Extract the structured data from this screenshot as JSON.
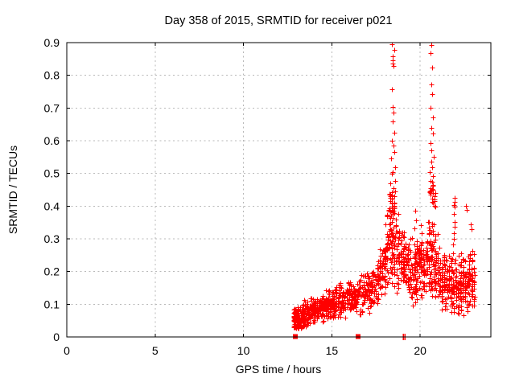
{
  "chart_data": {
    "type": "scatter",
    "title": "Day 358 of 2015, SRMTID for receiver p021",
    "xlabel": "GPS time / hours",
    "ylabel": "SRMTID / TECUs",
    "xlim": [
      0,
      24
    ],
    "ylim": [
      0,
      0.9
    ],
    "xticks": [
      0,
      5,
      10,
      15,
      20
    ],
    "xticklabels": [
      "0",
      "5",
      "10",
      "15",
      "20"
    ],
    "yticks": [
      0,
      0.1,
      0.2,
      0.3,
      0.4,
      0.5,
      0.6,
      0.7,
      0.8,
      0.9
    ],
    "yticklabels": [
      "0",
      "0.1",
      "0.2",
      "0.3",
      "0.4",
      "0.5",
      "0.6",
      "0.7",
      "0.8",
      "0.9"
    ],
    "grid": true,
    "grid_color": "#b8b8b8",
    "legend": "none",
    "marker": "plus",
    "marker_color": "#ff0000",
    "frame_color": "#000000",
    "seed": 20151358,
    "segments": [
      {
        "x0": 12.82,
        "x1": 13.35,
        "n": 100,
        "y0": 0.052,
        "y1": 0.06,
        "w": 0.042,
        "lo": 0.025,
        "hi": 0.13,
        "cols": false
      },
      {
        "x0": 13.35,
        "x1": 14.3,
        "n": 140,
        "y0": 0.065,
        "y1": 0.085,
        "w": 0.05,
        "lo": 0.03,
        "hi": 0.16,
        "cols": false
      },
      {
        "x0": 14.3,
        "x1": 15.3,
        "n": 140,
        "y0": 0.088,
        "y1": 0.105,
        "w": 0.055,
        "lo": 0.04,
        "hi": 0.19,
        "cols": false
      },
      {
        "x0": 15.3,
        "x1": 16.45,
        "n": 140,
        "y0": 0.105,
        "y1": 0.122,
        "w": 0.06,
        "lo": 0.05,
        "hi": 0.215,
        "cols": false
      },
      {
        "x0": 16.45,
        "x1": 17.5,
        "n": 115,
        "y0": 0.122,
        "y1": 0.15,
        "w": 0.07,
        "lo": 0.055,
        "hi": 0.25,
        "cols": false
      },
      {
        "x0": 17.5,
        "x1": 18.05,
        "n": 75,
        "y0": 0.16,
        "y1": 0.23,
        "w": 0.1,
        "lo": 0.07,
        "hi": 0.4,
        "cols": true
      },
      {
        "x0": 18.05,
        "x1": 18.75,
        "n": 115,
        "y0": 0.29,
        "y1": 0.27,
        "w": 0.16,
        "lo": 0.1,
        "hi": 0.52,
        "cols": true
      },
      {
        "x0": 18.25,
        "x1": 18.55,
        "n": 22,
        "y0": 0.4,
        "y1": 0.4,
        "w": 0.05,
        "lo": 0.33,
        "hi": 0.475,
        "cols": true
      },
      {
        "x0": 18.75,
        "x1": 19.6,
        "n": 120,
        "y0": 0.25,
        "y1": 0.2,
        "w": 0.11,
        "lo": 0.08,
        "hi": 0.4,
        "cols": true
      },
      {
        "x0": 19.6,
        "x1": 20.35,
        "n": 120,
        "y0": 0.2,
        "y1": 0.21,
        "w": 0.1,
        "lo": 0.08,
        "hi": 0.38,
        "cols": true
      },
      {
        "x0": 20.35,
        "x1": 21.0,
        "n": 115,
        "y0": 0.26,
        "y1": 0.22,
        "w": 0.13,
        "lo": 0.09,
        "hi": 0.5,
        "cols": true
      },
      {
        "x0": 20.52,
        "x1": 20.88,
        "n": 20,
        "y0": 0.44,
        "y1": 0.44,
        "w": 0.06,
        "lo": 0.355,
        "hi": 0.53,
        "cols": true
      },
      {
        "x0": 21.0,
        "x1": 22.05,
        "n": 150,
        "y0": 0.185,
        "y1": 0.16,
        "w": 0.1,
        "lo": 0.045,
        "hi": 0.36,
        "cols": true
      },
      {
        "x0": 22.05,
        "x1": 23.08,
        "n": 160,
        "y0": 0.155,
        "y1": 0.175,
        "w": 0.1,
        "lo": 0.04,
        "hi": 0.37,
        "cols": true
      }
    ],
    "outliers": [
      [
        18.42,
        0.895
      ],
      [
        18.52,
        0.878
      ],
      [
        18.44,
        0.858
      ],
      [
        18.46,
        0.845
      ],
      [
        18.43,
        0.836
      ],
      [
        18.48,
        0.828
      ],
      [
        18.41,
        0.757
      ],
      [
        18.45,
        0.703
      ],
      [
        18.5,
        0.686
      ],
      [
        18.44,
        0.66
      ],
      [
        18.55,
        0.625
      ],
      [
        18.38,
        0.6
      ],
      [
        18.47,
        0.585
      ],
      [
        18.52,
        0.565
      ],
      [
        18.35,
        0.545
      ],
      [
        18.6,
        0.52
      ],
      [
        18.43,
        0.505
      ],
      [
        18.39,
        0.498
      ],
      [
        18.56,
        0.478
      ],
      [
        18.31,
        0.47
      ],
      [
        18.49,
        0.455
      ],
      [
        18.58,
        0.445
      ],
      [
        18.28,
        0.435
      ],
      [
        20.62,
        0.893
      ],
      [
        20.6,
        0.868
      ],
      [
        20.66,
        0.825
      ],
      [
        20.63,
        0.772
      ],
      [
        20.68,
        0.742
      ],
      [
        20.6,
        0.7
      ],
      [
        20.7,
        0.672
      ],
      [
        20.65,
        0.64
      ],
      [
        20.72,
        0.622
      ],
      [
        20.58,
        0.592
      ],
      [
        20.64,
        0.57
      ],
      [
        20.75,
        0.552
      ],
      [
        20.61,
        0.535
      ],
      [
        20.67,
        0.52
      ],
      [
        20.56,
        0.505
      ],
      [
        20.71,
        0.492
      ],
      [
        20.59,
        0.478
      ],
      [
        20.74,
        0.462
      ],
      [
        21.93,
        0.425
      ],
      [
        21.96,
        0.413
      ],
      [
        21.89,
        0.404
      ],
      [
        21.95,
        0.398
      ],
      [
        21.91,
        0.376
      ],
      [
        21.94,
        0.352
      ],
      [
        21.97,
        0.336
      ],
      [
        21.9,
        0.318
      ],
      [
        21.92,
        0.3
      ],
      [
        21.88,
        0.284
      ],
      [
        22.6,
        0.4
      ],
      [
        22.63,
        0.388
      ],
      [
        19.72,
        0.385
      ],
      [
        19.78,
        0.356
      ],
      [
        19.68,
        0.332
      ],
      [
        20.05,
        0.342
      ],
      [
        20.1,
        0.316
      ],
      [
        17.25,
        0.196
      ],
      [
        17.32,
        0.186
      ],
      [
        22.86,
        0.345
      ],
      [
        22.9,
        0.33
      ]
    ],
    "zero_markers": {
      "squares": [
        12.93,
        16.49
      ],
      "bars": [
        19.04,
        19.13
      ]
    }
  }
}
